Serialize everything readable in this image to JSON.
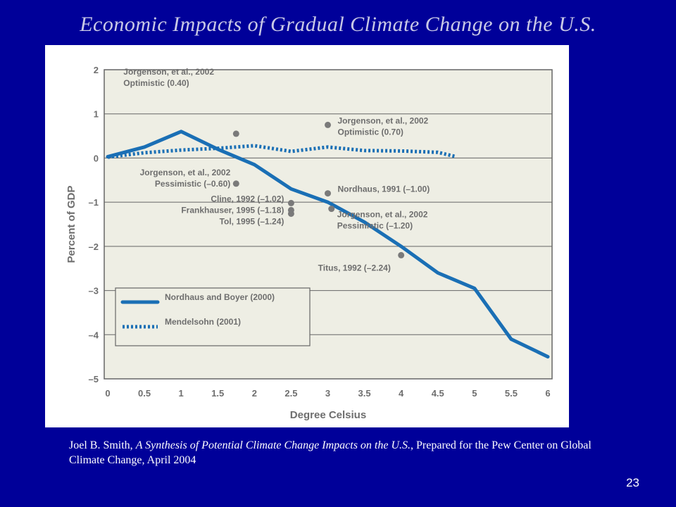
{
  "slide": {
    "title": "Economic Impacts of Gradual Climate Change on the U.S.",
    "citation_author": "Joel B. Smith, ",
    "citation_title": "A Synthesis of Potential Climate Change Impacts on the U.S.",
    "citation_rest": ", Prepared for the Pew Center on Global Climate Change, April 2004",
    "page_number": "23"
  },
  "colors": {
    "background": "#000099",
    "plot_bg": "#eeeee4",
    "line_blue": "#1a6fb5",
    "dot": "#7a7a7a",
    "text_gray": "#6e6e6e",
    "grid": "#666666"
  },
  "chart_data": {
    "type": "line",
    "title": "",
    "xlabel": "Degree Celsius",
    "ylabel": "Percent of GDP",
    "xlim": [
      0,
      6
    ],
    "ylim": [
      -5,
      2
    ],
    "x_ticks": [
      0,
      0.5,
      1,
      1.5,
      2,
      2.5,
      3,
      3.5,
      4,
      4.5,
      5,
      5.5,
      6
    ],
    "x_tick_labels": [
      "0",
      "0.5",
      "1",
      "1.5",
      "2",
      "2.5",
      "3",
      "3.5",
      "4",
      "4.5",
      "5",
      "5.5",
      "6"
    ],
    "y_ticks": [
      2,
      1,
      0,
      -1,
      -2,
      -3,
      -4,
      -5
    ],
    "y_tick_labels": [
      "2",
      "1",
      "0",
      "–1",
      "–2",
      "–3",
      "–4",
      "–5"
    ],
    "grid": "horizontal",
    "legend_position": "bottom-left",
    "series": [
      {
        "name": "Nordhaus and Boyer (2000)",
        "style": "solid",
        "points": [
          [
            0,
            0.03
          ],
          [
            0.5,
            0.25
          ],
          [
            1,
            0.6
          ],
          [
            1.5,
            0.2
          ],
          [
            2,
            -0.15
          ],
          [
            2.5,
            -0.7
          ],
          [
            3,
            -1.0
          ],
          [
            3.5,
            -1.45
          ],
          [
            4,
            -2.0
          ],
          [
            4.5,
            -2.6
          ],
          [
            5,
            -2.95
          ],
          [
            5.5,
            -4.1
          ],
          [
            6,
            -4.5
          ]
        ]
      },
      {
        "name": "Mendelsohn (2001)",
        "style": "dotted",
        "points": [
          [
            0,
            0.02
          ],
          [
            0.5,
            0.12
          ],
          [
            1,
            0.18
          ],
          [
            1.5,
            0.22
          ],
          [
            2,
            0.28
          ],
          [
            2.5,
            0.15
          ],
          [
            3,
            0.25
          ],
          [
            3.5,
            0.17
          ],
          [
            4,
            0.16
          ],
          [
            4.5,
            0.13
          ],
          [
            4.75,
            0.03
          ]
        ]
      }
    ],
    "annotations": [
      {
        "lines": [
          "Jorgenson, et al., 2002",
          "Optimistic (0.40)"
        ],
        "x": 1.75,
        "y": 0.55
      },
      {
        "lines": [
          "Jorgenson, et al., 2002",
          "Optimistic (0.70)"
        ],
        "x": 3.0,
        "y": 0.75
      },
      {
        "lines": [
          "Jorgenson, et al., 2002",
          "Pessimistic (–0.60)"
        ],
        "x": 1.75,
        "y": -0.58
      },
      {
        "lines": [
          "Nordhaus, 1991 (–1.00)"
        ],
        "x": 3.0,
        "y": -0.8
      },
      {
        "lines": [
          "Cline, 1992 (–1.02)",
          "Frankhauser, 1995 (–1.18)",
          "Tol, 1995 (–1.24)"
        ],
        "x": 2.5,
        "y": -1.02
      },
      {
        "lines": [
          "Jorgenson, et al., 2002",
          "Pessimistic (–1.20)"
        ],
        "x": 3.05,
        "y": -1.15
      },
      {
        "lines": [
          "Titus, 1992 (–2.24)"
        ],
        "x": 4.0,
        "y": -2.2
      }
    ],
    "extra_points": [
      {
        "x": 2.5,
        "y": -1.18
      },
      {
        "x": 2.5,
        "y": -1.26
      }
    ]
  }
}
